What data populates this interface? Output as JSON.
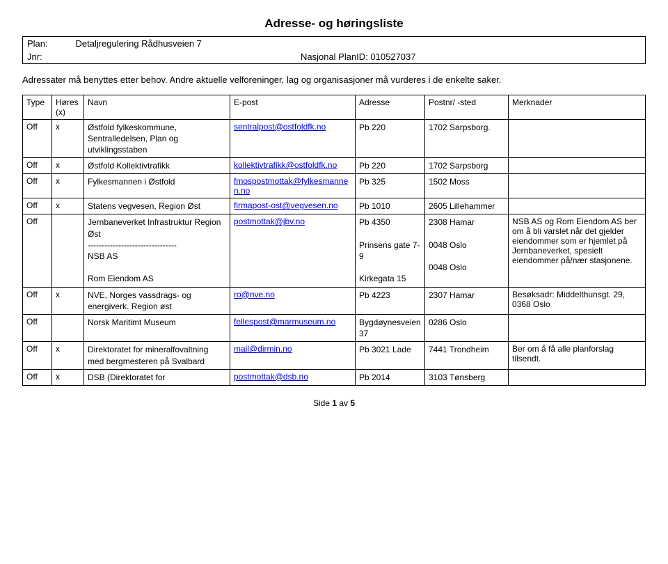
{
  "title": "Adresse- og høringsliste",
  "header": {
    "plan_label": "Plan:",
    "plan_value": "Detaljregulering Rådhusveien 7",
    "jnr_label": "Jnr:",
    "jnr_value": "Nasjonal PlanID: 010527037"
  },
  "intro": "Adressater må benyttes etter behov. Andre aktuelle velforeninger, lag og organisasjoner må vurderes i de enkelte saker.",
  "columns": {
    "type": "Type",
    "x": "Høres (x)",
    "name": "Navn",
    "email": "E-post",
    "addr": "Adresse",
    "post": "Postnr/ -sted",
    "note": "Merknader"
  },
  "rows": [
    {
      "type": "Off",
      "x": "x",
      "name": "Østfold fylkeskommune, Sentralledelsen, Plan og utviklingsstaben",
      "email": "sentralpost@ostfoldfk.no",
      "addr": "Pb 220",
      "post": "1702 Sarpsborg.",
      "note": ""
    },
    {
      "type": "Off",
      "x": "x",
      "name": "Østfold Kollektivtrafikk",
      "email": "kollektivtrafikk@ostfoldfk.no",
      "addr": "Pb 220",
      "post": "1702 Sarpsborg",
      "note": ""
    },
    {
      "type": "Off",
      "x": "x",
      "name": "Fylkesmannen i Østfold",
      "email": "fmospostmottak@fylkesmannen.no",
      "addr": "Pb 325",
      "post": "1502 Moss",
      "note": ""
    },
    {
      "type": "Off",
      "x": "x",
      "name": "Statens vegvesen, Region Øst",
      "email": "firmapost-ost@vegvesen.no",
      "addr": "Pb 1010",
      "post": "2605 Lillehammer",
      "note": ""
    },
    {
      "type": "Off",
      "x": "",
      "name_lines": [
        "Jernbaneverket Infrastruktur Region Øst",
        "--------------------------------",
        "NSB AS",
        "",
        "Rom Eiendom AS"
      ],
      "email": "postmottak@jbv.no",
      "addr_lines": [
        "Pb 4350",
        "",
        "Prinsens gate 7-9",
        "",
        "Kirkegata 15"
      ],
      "post_lines": [
        "2308 Hamar",
        "",
        "0048 Oslo",
        "",
        "0048 Oslo"
      ],
      "note": "NSB AS og Rom Eiendom AS ber om å bli varslet når det gjelder eiendommer som er hjemlet på Jernbaneverket, spesielt eiendommer på/nær stasjonene."
    },
    {
      "type": "Off",
      "x": "x",
      "name": "NVE, Norges vassdrags- og energiverk. Region øst",
      "email": "ro@nve.no",
      "addr": "Pb 4223",
      "post": "2307 Hamar",
      "note": "Besøksadr: Middelthunsgt. 29, 0368 Oslo"
    },
    {
      "type": "Off",
      "x": "",
      "name": "Norsk Maritimt Museum",
      "email": "fellespost@marmuseum.no",
      "addr": "Bygdøynesveien 37",
      "post": "0286 Oslo",
      "note": ""
    },
    {
      "type": "Off",
      "x": "x",
      "name": "Direktoratet for mineralfovaltning med bergmesteren på Svalbard",
      "email": "mail@dirmin.no",
      "addr": "Pb 3021 Lade",
      "post": "7441 Trondheim",
      "note": "Ber om å få alle planforslag tilsendt."
    },
    {
      "type": "Off",
      "x": "x",
      "name": "DSB (Direktoratet for",
      "email": "postmottak@dsb.no",
      "addr": "Pb 2014",
      "post": "3103 Tønsberg",
      "note": ""
    }
  ],
  "page": {
    "prefix": "Side ",
    "num": "1",
    "of": " av ",
    "total": "5"
  }
}
